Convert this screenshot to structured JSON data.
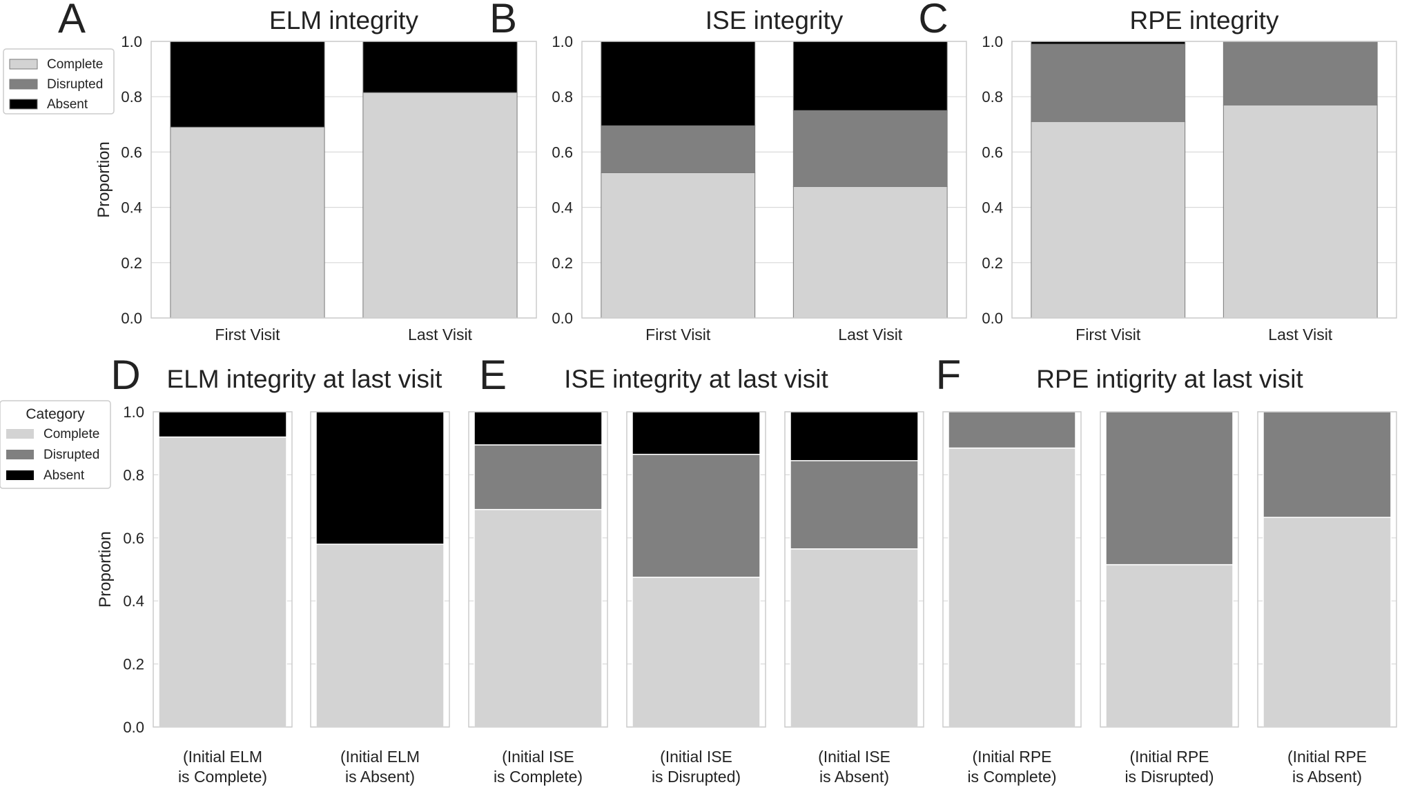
{
  "colors": {
    "Complete": "#d3d3d3",
    "Disrupted": "#808080",
    "Absent": "#000000",
    "frame": "#cccccc",
    "grid": "#d9d9d9"
  },
  "legend_top": {
    "entries": [
      "Complete",
      "Disrupted",
      "Absent"
    ]
  },
  "legend_bottom": {
    "title": "Category",
    "entries": [
      "Complete",
      "Disrupted",
      "Absent"
    ]
  },
  "chart_data": [
    {
      "panel": "A",
      "type": "bar",
      "stacked": true,
      "title": "ELM integrity",
      "ylabel": "Proportion",
      "ylim": [
        0,
        1
      ],
      "yticks": [
        "0.0",
        "0.2",
        "0.4",
        "0.6",
        "0.8",
        "1.0"
      ],
      "categories": [
        "First Visit",
        "Last Visit"
      ],
      "series": [
        {
          "name": "Complete",
          "values": [
            0.69,
            0.815
          ]
        },
        {
          "name": "Disrupted",
          "values": [
            0,
            0
          ]
        },
        {
          "name": "Absent",
          "values": [
            0.31,
            0.185
          ]
        }
      ],
      "legend": "top-left"
    },
    {
      "panel": "B",
      "type": "bar",
      "stacked": true,
      "title": "ISE integrity",
      "ylabel": "",
      "ylim": [
        0,
        1
      ],
      "yticks": [
        "0.0",
        "0.2",
        "0.4",
        "0.6",
        "0.8",
        "1.0"
      ],
      "categories": [
        "First Visit",
        "Last Visit"
      ],
      "series": [
        {
          "name": "Complete",
          "values": [
            0.525,
            0.475
          ]
        },
        {
          "name": "Disrupted",
          "values": [
            0.17,
            0.275
          ]
        },
        {
          "name": "Absent",
          "values": [
            0.305,
            0.25
          ]
        }
      ]
    },
    {
      "panel": "C",
      "type": "bar",
      "stacked": true,
      "title": "RPE integrity",
      "ylabel": "",
      "ylim": [
        0,
        1
      ],
      "yticks": [
        "0.0",
        "0.2",
        "0.4",
        "0.6",
        "0.8",
        "1.0"
      ],
      "categories": [
        "First Visit",
        "Last Visit"
      ],
      "series": [
        {
          "name": "Complete",
          "values": [
            0.71,
            0.77
          ]
        },
        {
          "name": "Disrupted",
          "values": [
            0.28,
            0.23
          ]
        },
        {
          "name": "Absent",
          "values": [
            0.01,
            0
          ]
        }
      ]
    },
    {
      "panel": "D",
      "type": "bar",
      "stacked": true,
      "title": "ELM integrity at last visit",
      "ylabel": "Proportion",
      "ylim": [
        0,
        1
      ],
      "yticks": [
        "0.0",
        "0.2",
        "0.4",
        "0.6",
        "0.8",
        "1.0"
      ],
      "categories": [
        "(Initial ELM\nis Complete)",
        "(Initial ELM\nis Absent)"
      ],
      "series": [
        {
          "name": "Complete",
          "values": [
            0.92,
            0.58
          ]
        },
        {
          "name": "Disrupted",
          "values": [
            0,
            0
          ]
        },
        {
          "name": "Absent",
          "values": [
            0.08,
            0.42
          ]
        }
      ],
      "legend": "top-left"
    },
    {
      "panel": "E",
      "type": "bar",
      "stacked": true,
      "title": "ISE integrity at last visit",
      "ylabel": "",
      "ylim": [
        0,
        1
      ],
      "categories": [
        "(Initial ISE\nis Complete)",
        "(Initial ISE\nis Disrupted)",
        "(Initial ISE\nis Absent)"
      ],
      "series": [
        {
          "name": "Complete",
          "values": [
            0.69,
            0.475,
            0.565
          ]
        },
        {
          "name": "Disrupted",
          "values": [
            0.205,
            0.39,
            0.28
          ]
        },
        {
          "name": "Absent",
          "values": [
            0.105,
            0.135,
            0.155
          ]
        }
      ]
    },
    {
      "panel": "F",
      "type": "bar",
      "stacked": true,
      "title": "RPE intigrity at last visit",
      "ylabel": "",
      "ylim": [
        0,
        1
      ],
      "categories": [
        "(Initial RPE\nis Complete)",
        "(Initial RPE\nis Disrupted)",
        "(Initial RPE\nis Absent)"
      ],
      "series": [
        {
          "name": "Complete",
          "values": [
            0.885,
            0.515,
            0.665
          ]
        },
        {
          "name": "Disrupted",
          "values": [
            0.115,
            0.485,
            0.335
          ]
        },
        {
          "name": "Absent",
          "values": [
            0,
            0,
            0
          ]
        }
      ]
    }
  ]
}
